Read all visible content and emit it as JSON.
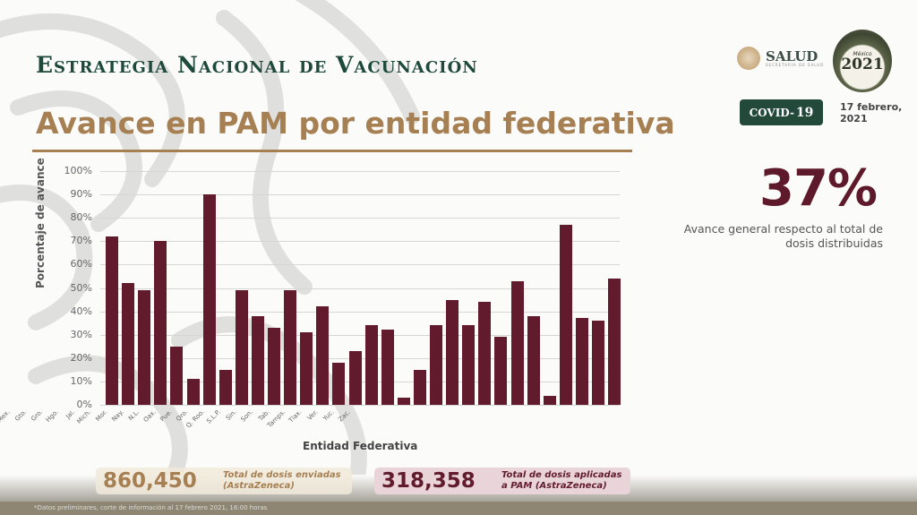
{
  "header": {
    "title": "Estrategia Nacional de Vacunación",
    "subtitle": "Avance en PAM por entidad federativa",
    "salud_logo": "SALUD",
    "salud_sub": "SECRETARÍA DE SALUD",
    "emblem_top": "México",
    "emblem_year": "2021",
    "covid_prefix": "COVID-",
    "covid_num": "19",
    "date_line1": "17 febrero,",
    "date_line2": "2021"
  },
  "summary": {
    "percent": "37%",
    "description": "Avance general respecto al total de dosis distribuidas"
  },
  "stats": {
    "sent_value": "860,450",
    "sent_label_1": "Total de dosis enviadas",
    "sent_label_2": "(AstraZeneca)",
    "applied_value": "318,358",
    "applied_label_1": "Total de dosis aplicadas",
    "applied_label_2": "a PAM (AstraZeneca)"
  },
  "footnote": "*Datos preliminares, corte de información al 17 febrero 2021, 16:00 horas",
  "colors": {
    "bar": "#621b2d",
    "green": "#23493b",
    "gold": "#a67f52"
  },
  "chart_data": {
    "type": "bar",
    "title": "Avance en PAM por entidad federativa",
    "xlabel": "Entidad Federativa",
    "ylabel": "Porcentaje de avance",
    "ylim": [
      0,
      100
    ],
    "yticks": [
      "0%",
      "10%",
      "20%",
      "30%",
      "40%",
      "50%",
      "60%",
      "70%",
      "80%",
      "90%",
      "100%"
    ],
    "grid": true,
    "categories": [
      "Ags.",
      "B.C.",
      "B.C.S.",
      "Camp.",
      "Chis.",
      "Chih.",
      "CDMX",
      "Coah.",
      "Col.",
      "Dgo.",
      "Edo. Mex.",
      "Gto.",
      "Gro.",
      "Hgo.",
      "Jal.",
      "Mich.",
      "Mor.",
      "Nay.",
      "N.L.",
      "Oax.",
      "Pue.",
      "Qro.",
      "Q. Roo.",
      "S.L.P.",
      "Sin.",
      "Son.",
      "Tab.",
      "Tamps.",
      "Tlax.",
      "Ver.",
      "Yuc.",
      "Zac."
    ],
    "values": [
      72,
      52,
      49,
      70,
      25,
      11,
      90,
      15,
      49,
      38,
      33,
      49,
      31,
      42,
      18,
      23,
      34,
      32,
      3,
      15,
      34,
      45,
      34,
      44,
      29,
      53,
      38,
      4,
      77,
      37,
      36,
      54
    ]
  }
}
